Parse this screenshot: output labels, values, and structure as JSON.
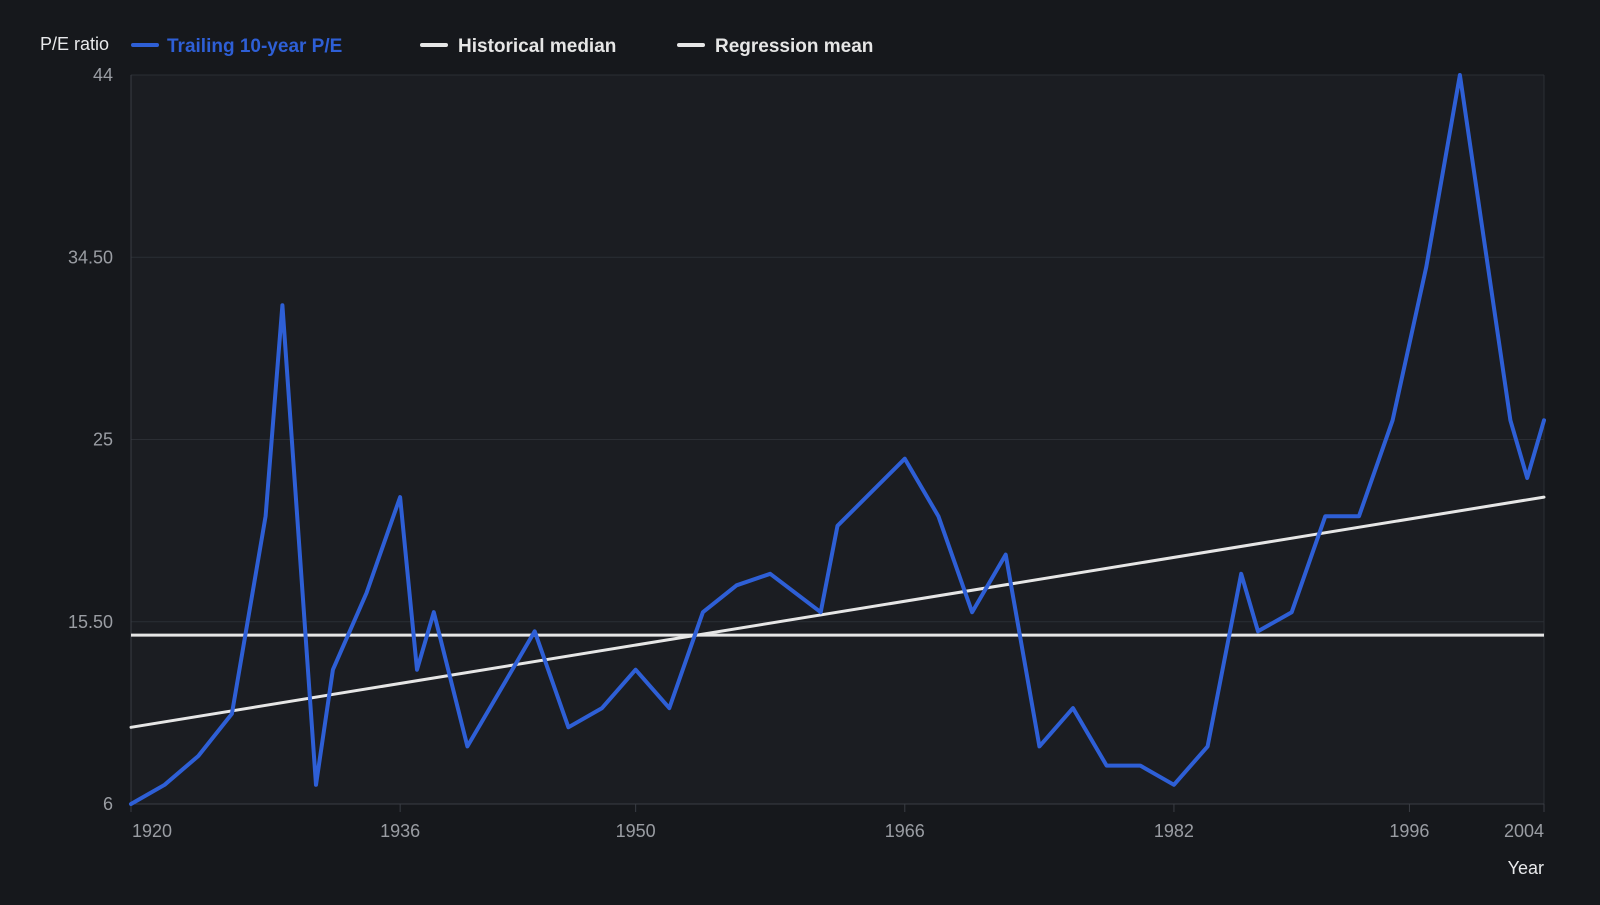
{
  "chart_data": {
    "type": "line",
    "ylabel": "P/E ratio",
    "xlabel": "Year",
    "ylim": [
      6,
      44
    ],
    "xlim": [
      1920,
      2004
    ],
    "yticks": [
      6,
      15.5,
      25,
      34.5,
      44
    ],
    "ytick_labels": [
      "6",
      "15.50",
      "25",
      "34.50",
      "44"
    ],
    "xticks": [
      1920,
      1936,
      1950,
      1966,
      1982,
      1996,
      2004
    ],
    "xtick_labels": [
      "1920",
      "1936",
      "1950",
      "1966",
      "1982",
      "1996",
      "2004"
    ],
    "grid": true,
    "legend_position": "top",
    "series": [
      {
        "name": "Trailing 10-year P/E",
        "kind": "line",
        "color": "#2e5fd6",
        "x": [
          1920,
          1922,
          1924,
          1926,
          1928,
          1929,
          1931,
          1932,
          1934,
          1936,
          1937,
          1938,
          1940,
          1942,
          1944,
          1946,
          1948,
          1950,
          1952,
          1954,
          1956,
          1958,
          1961,
          1962,
          1966,
          1968,
          1970,
          1972,
          1974,
          1976,
          1978,
          1980,
          1982,
          1984,
          1986,
          1987,
          1989,
          1991,
          1993,
          1995,
          1997,
          1999,
          2002,
          2003,
          2004
        ],
        "y": [
          6,
          7,
          8.5,
          10.7,
          21,
          32,
          7,
          13,
          17,
          22,
          13,
          16,
          9,
          12,
          15,
          10,
          11,
          13,
          11,
          16,
          17.4,
          18,
          16,
          20.5,
          24,
          21,
          16,
          19,
          9,
          11,
          8,
          8,
          7,
          9,
          18,
          15,
          16,
          21,
          21,
          26,
          34,
          44,
          26,
          23,
          26
        ]
      },
      {
        "name": "Historical median",
        "kind": "hline",
        "color": "#e6e6e6",
        "value": 14.8
      },
      {
        "name": "Regression mean",
        "kind": "line",
        "color": "#e6e6e6",
        "x": [
          1920,
          2004
        ],
        "y": [
          10,
          22
        ]
      }
    ]
  }
}
